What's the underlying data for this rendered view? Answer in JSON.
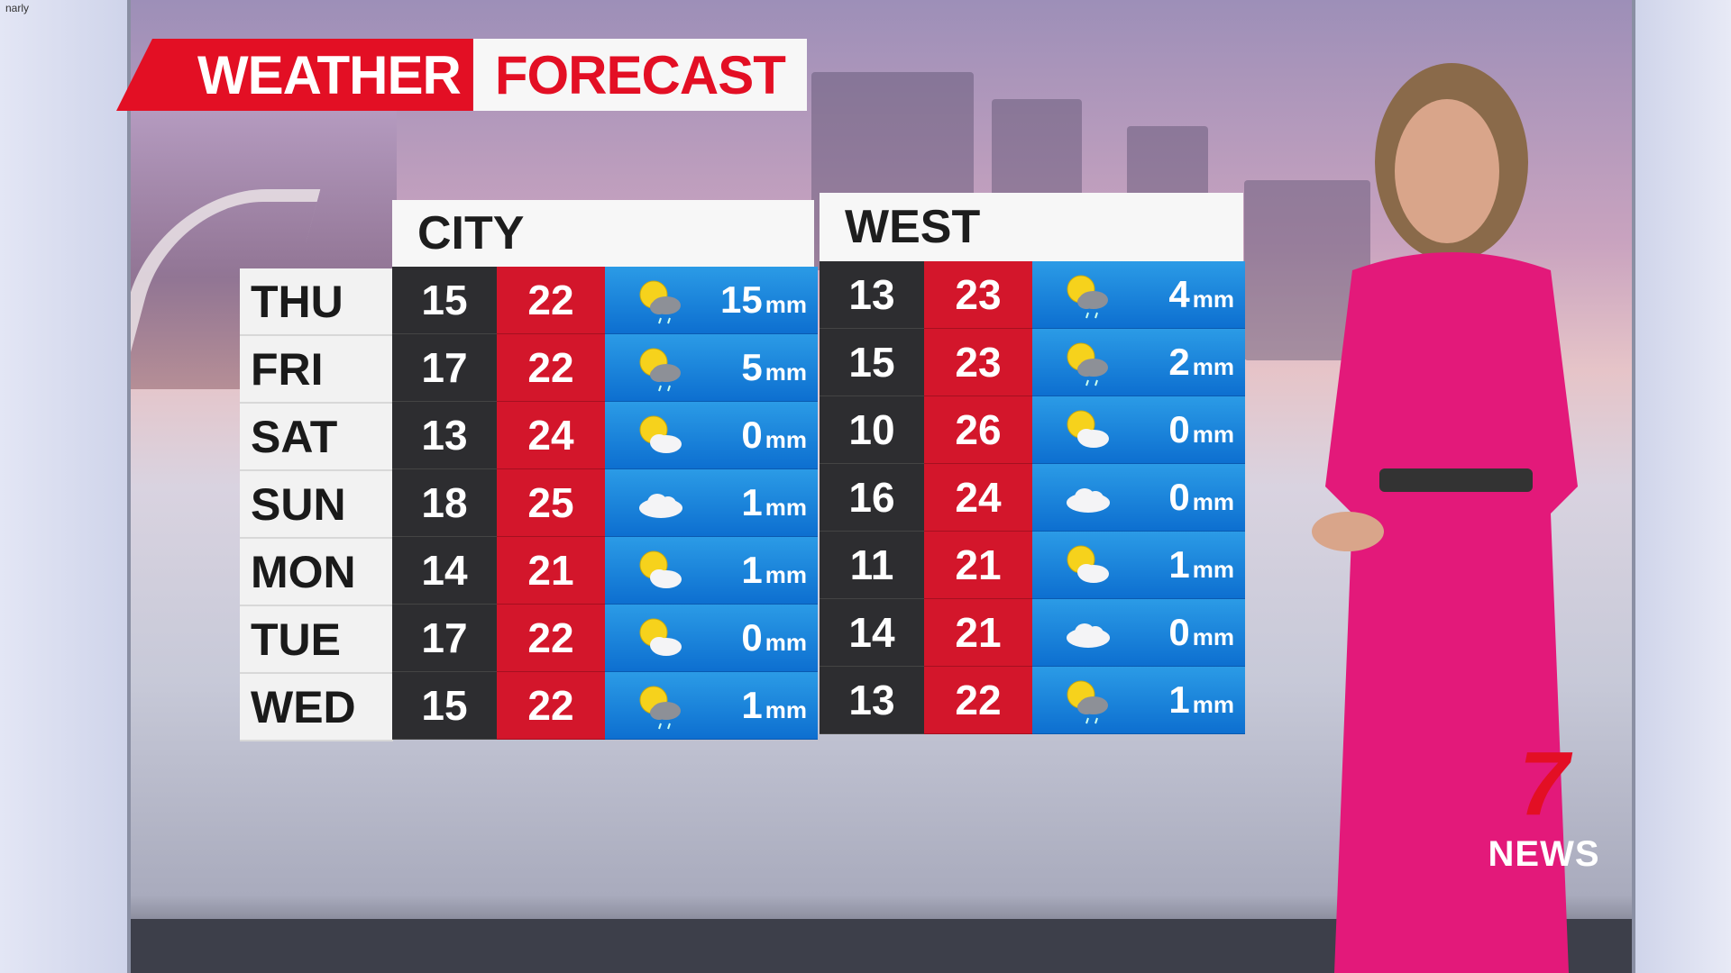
{
  "watermark": "narly",
  "title": {
    "part1": "WEATHER",
    "part2": "FORECAST"
  },
  "days": [
    "THU",
    "FRI",
    "SAT",
    "SUN",
    "MON",
    "TUE",
    "WED"
  ],
  "unit": "mm",
  "colors": {
    "min_bg": "#2d2d30",
    "max_bg": "#d3162b",
    "rain_bg": "#1a86dd",
    "brand_red": "#e30f24"
  },
  "regions": [
    {
      "name": "CITY",
      "rows": [
        {
          "min": "15",
          "max": "22",
          "icon": "sun-cloud-rain-icon",
          "rain": "15"
        },
        {
          "min": "17",
          "max": "22",
          "icon": "sun-cloud-rain-icon",
          "rain": "5"
        },
        {
          "min": "13",
          "max": "24",
          "icon": "sun-cloud-icon",
          "rain": "0"
        },
        {
          "min": "18",
          "max": "25",
          "icon": "cloud-icon",
          "rain": "1"
        },
        {
          "min": "14",
          "max": "21",
          "icon": "sun-cloud-icon",
          "rain": "1"
        },
        {
          "min": "17",
          "max": "22",
          "icon": "sun-cloud-icon",
          "rain": "0"
        },
        {
          "min": "15",
          "max": "22",
          "icon": "sun-cloud-rain-icon",
          "rain": "1"
        }
      ]
    },
    {
      "name": "WEST",
      "rows": [
        {
          "min": "13",
          "max": "23",
          "icon": "sun-cloud-rain-icon",
          "rain": "4"
        },
        {
          "min": "15",
          "max": "23",
          "icon": "sun-cloud-rain-icon",
          "rain": "2"
        },
        {
          "min": "10",
          "max": "26",
          "icon": "sun-cloud-icon",
          "rain": "0"
        },
        {
          "min": "16",
          "max": "24",
          "icon": "cloud-icon",
          "rain": "0"
        },
        {
          "min": "11",
          "max": "21",
          "icon": "sun-cloud-icon",
          "rain": "1"
        },
        {
          "min": "14",
          "max": "21",
          "icon": "cloud-icon",
          "rain": "0"
        },
        {
          "min": "13",
          "max": "22",
          "icon": "sun-cloud-rain-icon",
          "rain": "1"
        }
      ]
    }
  ],
  "logo": {
    "number": "7",
    "text": "NEWS"
  }
}
